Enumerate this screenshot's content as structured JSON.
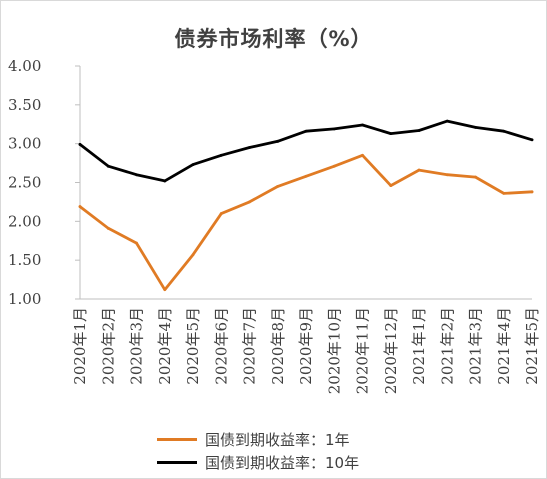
{
  "chart_data": {
    "type": "line",
    "title": "债券市场利率（%）",
    "categories": [
      "2020年1月",
      "2020年2月",
      "2020年3月",
      "2020年4月",
      "2020年5月",
      "2020年6月",
      "2020年7月",
      "2020年8月",
      "2020年9月",
      "2020年10月",
      "2020年11月",
      "2020年12月",
      "2021年1月",
      "2021年2月",
      "2021年3月",
      "2021年4月",
      "2021年5月"
    ],
    "series": [
      {
        "name": "国债到期收益率：1年",
        "color": "#e07b24",
        "values": [
          2.19,
          1.91,
          1.72,
          1.12,
          1.57,
          2.1,
          2.25,
          2.45,
          2.58,
          2.71,
          2.85,
          2.46,
          2.66,
          2.6,
          2.57,
          2.36,
          2.38
        ]
      },
      {
        "name": "国债到期收益率：10年",
        "color": "#000000",
        "values": [
          2.99,
          2.71,
          2.6,
          2.52,
          2.73,
          2.85,
          2.95,
          3.03,
          3.16,
          3.19,
          3.24,
          3.13,
          3.17,
          3.29,
          3.21,
          3.16,
          3.05
        ]
      }
    ],
    "ylim": [
      1.0,
      4.0
    ],
    "yticks": [
      "1.00",
      "1.50",
      "2.00",
      "2.50",
      "3.00",
      "3.50",
      "4.00"
    ],
    "xlabel": "",
    "ylabel": "",
    "grid": false,
    "legend": "bottom"
  }
}
